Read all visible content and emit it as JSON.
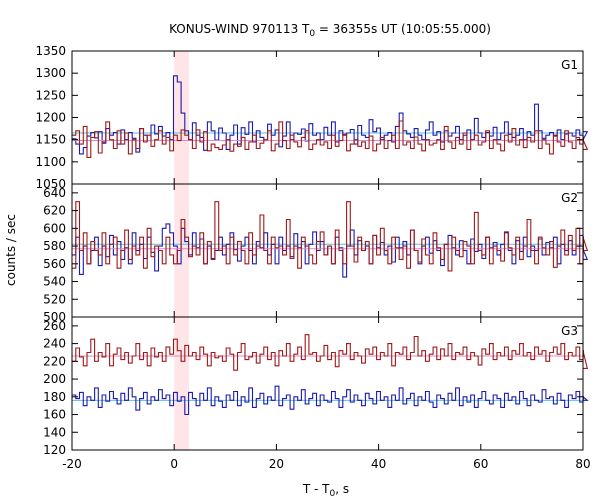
{
  "chart_data": {
    "type": "line",
    "title": "KONUS-WIND 970113 T",
    "title_sub": "0",
    "title_rest": " = 36355s UT (10:05:55.000)",
    "xlabel": "T - T",
    "xlabel_sub": "0",
    "xlabel_rest": ", s",
    "ylabel": "counts / sec",
    "xlim": [
      -20,
      80
    ],
    "xticks": [
      -20,
      0,
      20,
      40,
      60,
      80
    ],
    "highlight": {
      "x0": 0,
      "x1": 2.9,
      "color": "#ffe4e8"
    },
    "bin": {
      "start": -20,
      "width": 0.736
    },
    "panels": [
      {
        "name": "G1",
        "ylim": [
          1050,
          1350
        ],
        "yticks": [
          1050,
          1100,
          1150,
          1200,
          1250,
          1300,
          1350
        ],
        "series": [
          {
            "color": "#1a1ab0",
            "mean": 1165,
            "mean_color": "#56c2d8",
            "values": [
              1152,
              1140,
              1118,
              1132,
              1158,
              1166,
              1154,
              1168,
              1142,
              1175,
              1160,
              1166,
              1140,
              1172,
              1150,
              1166,
              1153,
              1122,
              1175,
              1160,
              1148,
              1183,
              1163,
              1180,
              1158,
              1166,
              1150,
              1294,
              1280,
              1210,
              1170,
              1150,
              1188,
              1160,
              1155,
              1126,
              1190,
              1170,
              1149,
              1176,
              1165,
              1128,
              1160,
              1183,
              1140,
              1177,
              1162,
              1190,
              1145,
              1170,
              1155,
              1148,
              1185,
              1160,
              1172,
              1134,
              1158,
              1190,
              1150,
              1165,
              1162,
              1174,
              1147,
              1186,
              1160,
              1165,
              1150,
              1178,
              1160,
              1190,
              1145,
              1170,
              1160,
              1165,
              1173,
              1140,
              1182,
              1160,
              1155,
              1195,
              1168,
              1176,
              1150,
              1160,
              1166,
              1145,
              1180,
              1210,
              1170,
              1163,
              1155,
              1175,
              1160,
              1150,
              1172,
              1190,
              1160,
              1168,
              1145,
              1170,
              1158,
              1165,
              1180,
              1150,
              1160,
              1172,
              1150,
              1198,
              1165,
              1155,
              1166,
              1158,
              1178,
              1150,
              1165,
              1190,
              1162,
              1155,
              1160,
              1175,
              1150,
              1168,
              1160,
              1230,
              1170,
              1153,
              1160,
              1166,
              1158,
              1172,
              1150,
              1163,
              1165,
              1158,
              1172,
              1160,
              1150,
              1168
            ]
          },
          {
            "color": "#a01818",
            "mean": 1148,
            "mean_color": "#d98ad0",
            "values": [
              1160,
              1170,
              1140,
              1180,
              1110,
              1155,
              1168,
              1120,
              1145,
              1190,
              1150,
              1130,
              1170,
              1140,
              1165,
              1118,
              1150,
              1130,
              1175,
              1145,
              1160,
              1135,
              1150,
              1170,
              1140,
              1155,
              1125,
              1160,
              1148,
              1172,
              1160,
              1150,
              1130,
              1172,
              1145,
              1168,
              1125,
              1140,
              1132,
              1128,
              1138,
              1150,
              1124,
              1140,
              1135,
              1155,
              1128,
              1145,
              1160,
              1130,
              1142,
              1150,
              1170,
              1125,
              1140,
              1190,
              1148,
              1130,
              1160,
              1145,
              1134,
              1155,
              1170,
              1128,
              1140,
              1150,
              1138,
              1145,
              1130,
              1160,
              1135,
              1148,
              1162,
              1125,
              1140,
              1150,
              1135,
              1145,
              1130,
              1158,
              1125,
              1140,
              1155,
              1130,
              1148,
              1160,
              1130,
              1192,
              1138,
              1145,
              1130,
              1156,
              1140,
              1125,
              1150,
              1138,
              1142,
              1150,
              1128,
              1180,
              1145,
              1130,
              1155,
              1140,
              1165,
              1128,
              1150,
              1160,
              1138,
              1145,
              1170,
              1130,
              1150,
              1140,
              1125,
              1160,
              1145,
              1175,
              1138,
              1150,
              1132,
              1155,
              1145,
              1170,
              1130,
              1150,
              1140,
              1118,
              1160,
              1145,
              1135,
              1170,
              1145,
              1130,
              1155,
              1140,
              1150,
              1128
            ]
          }
        ]
      },
      {
        "name": "G2",
        "ylim": [
          500,
          650
        ],
        "yticks": [
          500,
          520,
          540,
          560,
          580,
          600,
          620,
          640
        ],
        "series": [
          {
            "color": "#1a1ab0",
            "mean": 582,
            "mean_color": "#56c2d8",
            "values": [
              570,
              590,
              548,
              580,
              560,
              575,
              590,
              558,
              580,
              568,
              592,
              570,
              585,
              565,
              578,
              560,
              595,
              575,
              582,
              566,
              590,
              573,
              552,
              580,
              600,
              605,
              595,
              580,
              560,
              600,
              585,
              570,
              595,
              578,
              588,
              560,
              580,
              566,
              575,
              590,
              570,
              582,
              595,
              576,
              563,
              580,
              590,
              575,
              560,
              585,
              578,
              595,
              570,
              582,
              560,
              590,
              575,
              580,
              568,
              594,
              578,
              585,
              560,
              582,
              596,
              575,
              585,
              570,
              580,
              560,
              590,
              578,
              545,
              580,
              598,
              570,
              586,
              575,
              580,
              560,
              592,
              578,
              584,
              570,
              580,
              562,
              590,
              578,
              585,
              570,
              598,
              575,
              560,
              580,
              590,
              572,
              586,
              575,
              558,
              582,
              592,
              578,
              570,
              586,
              575,
              560,
              588,
              574,
              582,
              566,
              590,
              578,
              584,
              570,
              582,
              596,
              575,
              560,
              586,
              574,
              590,
              568,
              580,
              575,
              588,
              570,
              584,
              578,
              590,
              560,
              582,
              575,
              586,
              570,
              580,
              592,
              576,
              565
            ]
          },
          {
            "color": "#a01818",
            "mean": 577,
            "mean_color": "#d98ad0",
            "values": [
              555,
              630,
              575,
              595,
              560,
              585,
              575,
              570,
              595,
              560,
              582,
              590,
              555,
              575,
              598,
              565,
              580,
              570,
              590,
              555,
              600,
              568,
              580,
              575,
              560,
              590,
              570,
              560,
              575,
              610,
              590,
              568,
              580,
              570,
              595,
              560,
              585,
              565,
              630,
              575,
              580,
              560,
              590,
              570,
              585,
              575,
              560,
              595,
              570,
              580,
              615,
              575,
              560,
              590,
              578,
              580,
              570,
              610,
              566,
              580,
              555,
              590,
              580,
              570,
              560,
              585,
              596,
              570,
              580,
              560,
              598,
              575,
              560,
              630,
              580,
              562,
              590,
              575,
              585,
              560,
              592,
              570,
              600,
              575,
              560,
              590,
              578,
              565,
              580,
              555,
              598,
              575,
              562,
              588,
              570,
              560,
              595,
              578,
              565,
              582,
              552,
              590,
              575,
              568,
              585,
              580,
              560,
              618,
              575,
              570,
              590,
              560,
              580,
              575,
              563,
              595,
              578,
              570,
              590,
              565,
              580,
              610,
              575,
              560,
              590,
              578,
              570,
              585,
              556,
              580,
              598,
              570,
              592,
              575,
              600,
              560,
              590,
              575
            ]
          }
        ]
      },
      {
        "name": "G3",
        "ylim": [
          120,
          270
        ],
        "yticks": [
          120,
          140,
          160,
          180,
          200,
          220,
          240,
          260
        ],
        "series": [
          {
            "color": "#1a1ab0",
            "mean": 176,
            "mean_color": "#56c2d8",
            "values": [
              182,
              178,
              185,
              170,
              180,
              176,
              190,
              168,
              182,
              175,
              186,
              178,
              172,
              184,
              176,
              190,
              180,
              165,
              178,
              185,
              172,
              180,
              176,
              188,
              178,
              182,
              170,
              185,
              175,
              180,
              160,
              185,
              178,
              170,
              184,
              176,
              190,
              170,
              180,
              175,
              168,
              182,
              176,
              186,
              170,
              180,
              174,
              190,
              168,
              178,
              184,
              172,
              180,
              176,
              192,
              170,
              178,
              182,
              166,
              180,
              176,
              188,
              172,
              178,
              184,
              170,
              182,
              176,
              174,
              186,
              178,
              168,
              180,
              188,
              174,
              182,
              176,
              170,
              184,
              178,
              172,
              186,
              176,
              180,
              168,
              182,
              176,
              190,
              172,
              178,
              184,
              170,
              180,
              176,
              186,
              174,
              168,
              182,
              178,
              172,
              184,
              176,
              190,
              170,
              180,
              174,
              182,
              168,
              178,
              186,
              176,
              172,
              182,
              178,
              168,
              184,
              176,
              180,
              172,
              186,
              178,
              170,
              182,
              176,
              174,
              188,
              178,
              180,
              172,
              184,
              176,
              168,
              182,
              178,
              186,
              174,
              180,
              176
            ]
          },
          {
            "color": "#a01818",
            "mean": 226,
            "mean_color": "#d98ad0",
            "values": [
              220,
              235,
              225,
              215,
              230,
              245,
              220,
              230,
              225,
              240,
              215,
              228,
              235,
              222,
              230,
              218,
              226,
              240,
              222,
              230,
              215,
              235,
              225,
              230,
              220,
              236,
              228,
              245,
              232,
              220,
              238,
              226,
              230,
              222,
              236,
              228,
              215,
              230,
              224,
              226,
              220,
              235,
              228,
              210,
              230,
              240,
              222,
              225,
              230,
              218,
              228,
              236,
              222,
              230,
              215,
              232,
              226,
              240,
              220,
              228,
              236,
              222,
              250,
              228,
              230,
              220,
              226,
              238,
              222,
              230,
              214,
              232,
              228,
              240,
              222,
              230,
              226,
              218,
              234,
              228,
              236,
              222,
              230,
              226,
              240,
              215,
              230,
              228,
              236,
              222,
              230,
              248,
              226,
              232,
              220,
              228,
              236,
              222,
              234,
              226,
              240,
              222,
              230,
              228,
              236,
              222,
              230,
              226,
              216,
              234,
              228,
              240,
              222,
              230,
              226,
              236,
              222,
              232,
              228,
              240,
              226,
              230,
              222,
              236,
              228,
              232,
              220,
              230,
              236,
              228,
              240,
              222,
              230,
              226,
              236,
              222,
              232,
              212
            ]
          }
        ]
      }
    ]
  }
}
